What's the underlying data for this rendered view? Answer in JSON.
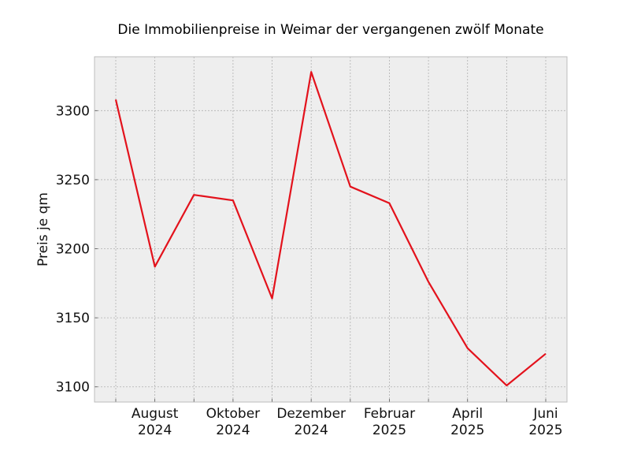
{
  "chart_data": {
    "type": "line",
    "title": "Die Immobilienpreise in Weimar der vergangenen zwölf Monate",
    "xlabel": "",
    "ylabel": "Preis je qm",
    "x": [
      "2024-07",
      "2024-08",
      "2024-09",
      "2024-10",
      "2024-11",
      "2024-12",
      "2025-01",
      "2025-02",
      "2025-03",
      "2025-04",
      "2025-05",
      "2025-06"
    ],
    "series": [
      {
        "values": [
          3308,
          3187,
          3239,
          3235,
          3164,
          3328,
          3245,
          3233,
          3176,
          3128,
          3101,
          3124
        ]
      }
    ],
    "ylim": [
      3089,
      3339
    ],
    "yticks": [
      3100,
      3150,
      3200,
      3250,
      3300
    ],
    "xticks": [
      {
        "x": "2024-08",
        "line1": "August",
        "line2": "2024"
      },
      {
        "x": "2024-10",
        "line1": "Oktober",
        "line2": "2024"
      },
      {
        "x": "2024-12",
        "line1": "Dezember",
        "line2": "2024"
      },
      {
        "x": "2025-02",
        "line1": "Februar",
        "line2": "2025"
      },
      {
        "x": "2025-04",
        "line1": "April",
        "line2": "2025"
      },
      {
        "x": "2025-06",
        "line1": "Juni",
        "line2": "2025"
      }
    ],
    "grid": true,
    "colors": {
      "line": "#e3121c",
      "plot_background": "#eeeeee",
      "grid": "#b0b0b0",
      "frame": "#bcbcbc"
    }
  }
}
